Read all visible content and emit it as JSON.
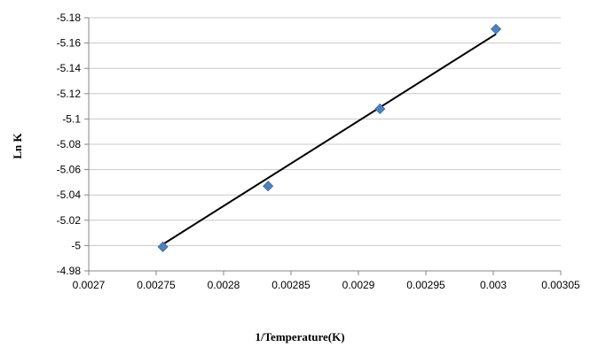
{
  "chart_data": {
    "type": "scatter",
    "title": "",
    "xlabel": "1/Temperature(K)",
    "ylabel": "Ln K",
    "xlim": [
      0.0027,
      0.00305
    ],
    "ylim": [
      -4.98,
      -5.18
    ],
    "y_axis_reversed": true,
    "x_ticks": [
      "0.0027",
      "0.00275",
      "0.0028",
      "0.00285",
      "0.0029",
      "0.00295",
      "0.003",
      "0.00305"
    ],
    "y_ticks": [
      "-5.18",
      "-5.16",
      "-5.14",
      "-5.12",
      "-5.1",
      "-5.08",
      "-5.06",
      "-5.04",
      "-5.02",
      "-5",
      "-4.98"
    ],
    "grid": "horizontal",
    "legend": "none",
    "series": [
      {
        "points": [
          {
            "x": 0.002755,
            "y": -4.999
          },
          {
            "x": 0.002833,
            "y": -5.047
          },
          {
            "x": 0.002916,
            "y": -5.108
          },
          {
            "x": 0.003002,
            "y": -5.171
          }
        ],
        "marker": "diamond",
        "color": "#4F81BD"
      }
    ],
    "trendline": {
      "type": "linear",
      "from": {
        "x": 0.002755,
        "y": -5.001
      },
      "to": {
        "x": 0.003002,
        "y": -5.167
      },
      "color": "#000000"
    }
  }
}
